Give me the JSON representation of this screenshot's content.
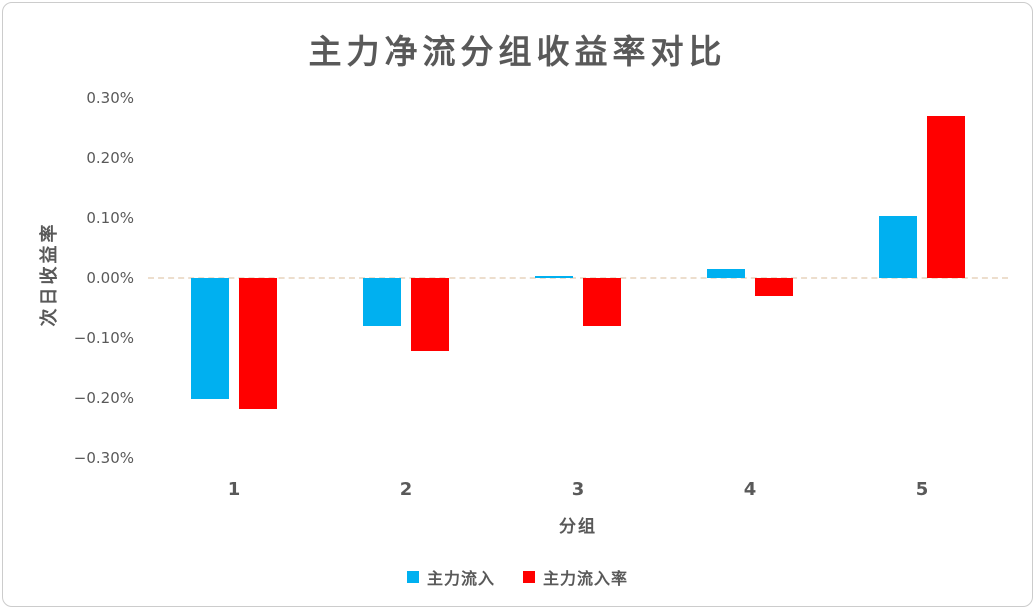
{
  "chart_data": {
    "type": "bar",
    "title": "主力净流分组收益率对比",
    "xlabel": "分组",
    "ylabel": "次日收益率",
    "unit": "percent",
    "categories": [
      "1",
      "2",
      "3",
      "4",
      "5"
    ],
    "series": [
      {
        "name": "主力流入",
        "color": "#00B0F0",
        "values": [
          -0.202,
          -0.08,
          0.003,
          0.015,
          0.103
        ]
      },
      {
        "name": "主力流入率",
        "color": "#FF0000",
        "values": [
          -0.218,
          -0.122,
          -0.08,
          -0.03,
          0.27
        ]
      }
    ],
    "ylim": [
      -0.3,
      0.3
    ],
    "y_ticks": [
      "0.30%",
      "0.20%",
      "0.10%",
      "0.00%",
      "−0.10%",
      "−0.20%",
      "−0.30%"
    ],
    "grid": "zero-line-only",
    "legend_position": "bottom"
  },
  "colors": {
    "text": "#595959",
    "zero_line": "#EAD9C5",
    "frame_border": "#CCCCCC",
    "background": "#FFFFFF"
  }
}
